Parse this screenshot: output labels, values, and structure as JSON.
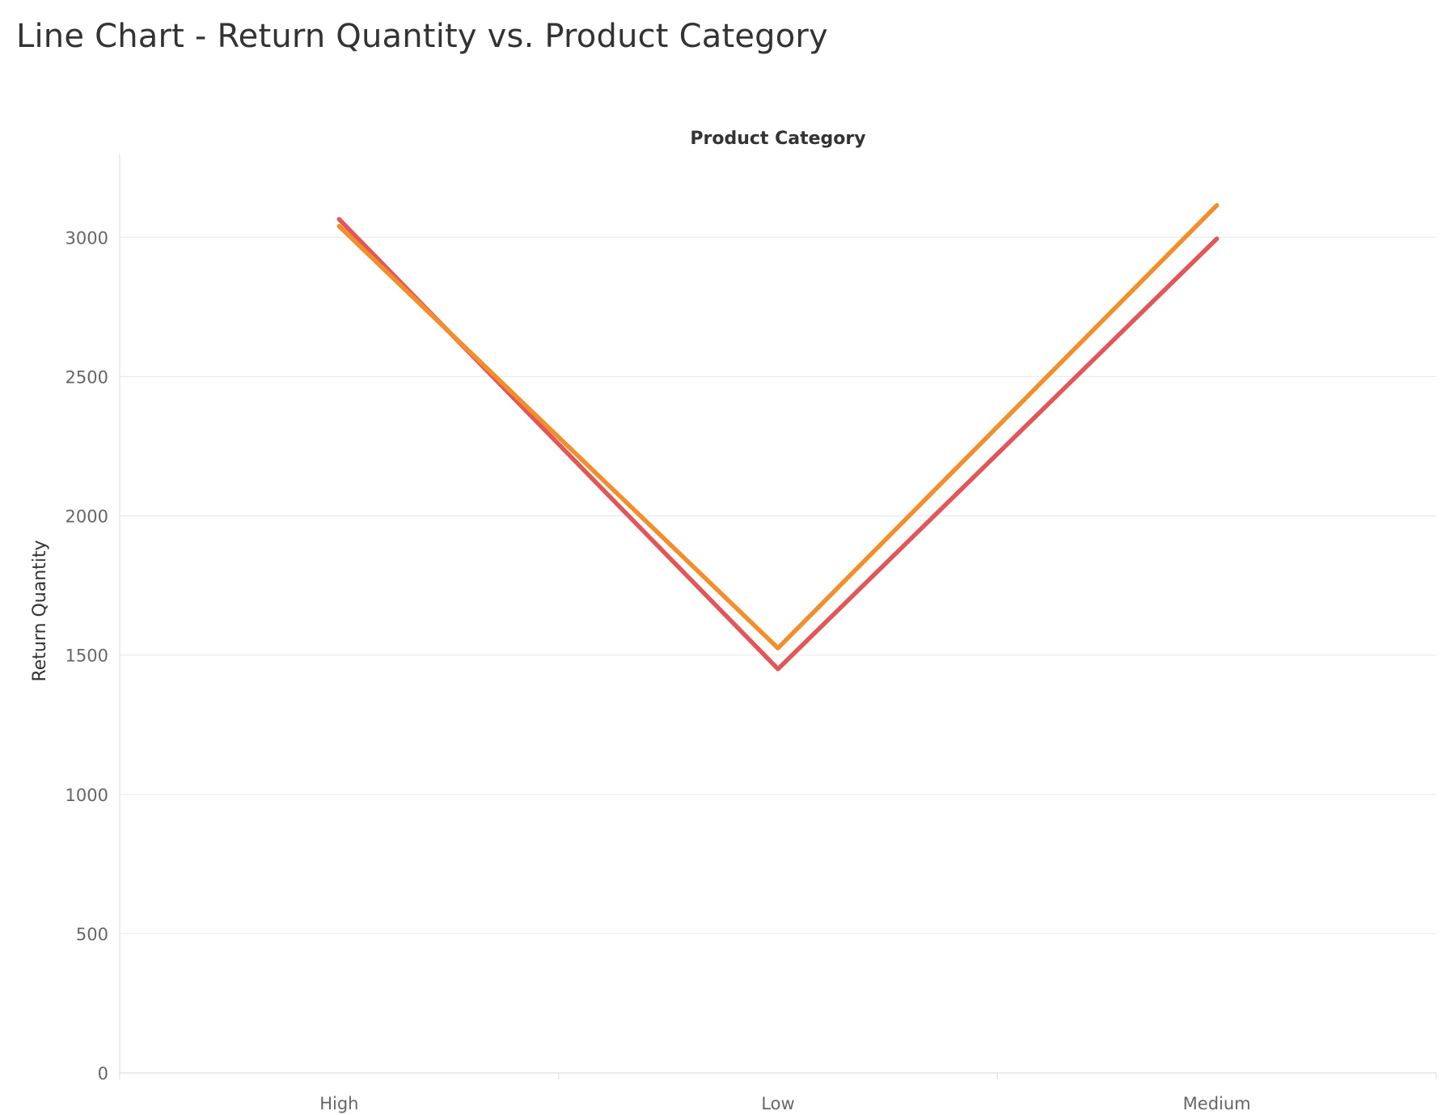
{
  "title": "Line Chart - Return Quantity vs. Product Category",
  "chart_data": {
    "type": "line",
    "title": "Line Chart - Return Quantity vs. Product Category",
    "xlabel": "Product Category",
    "ylabel": "Return Quantity",
    "categories": [
      "High",
      "Low",
      "Medium"
    ],
    "yticks": [
      0,
      500,
      1000,
      1500,
      2000,
      2500,
      3000
    ],
    "ylim": [
      0,
      3300
    ],
    "grid": true,
    "legend": "none",
    "series": [
      {
        "color": "#e15759",
        "values": [
          3065,
          1450,
          2995
        ]
      },
      {
        "color": "#f28e2b",
        "values": [
          3040,
          1525,
          3115
        ]
      }
    ]
  }
}
